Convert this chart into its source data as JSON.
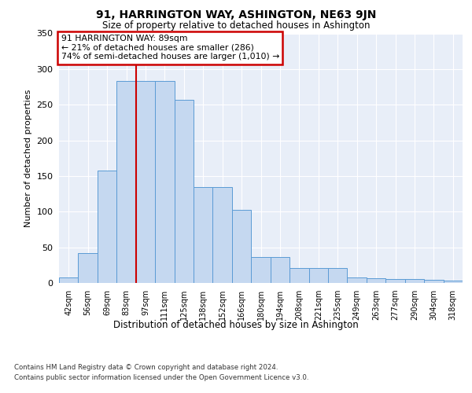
{
  "title": "91, HARRINGTON WAY, ASHINGTON, NE63 9JN",
  "subtitle": "Size of property relative to detached houses in Ashington",
  "xlabel": "Distribution of detached houses by size in Ashington",
  "ylabel": "Number of detached properties",
  "categories": [
    "42sqm",
    "56sqm",
    "69sqm",
    "83sqm",
    "97sqm",
    "111sqm",
    "125sqm",
    "138sqm",
    "152sqm",
    "166sqm",
    "180sqm",
    "194sqm",
    "208sqm",
    "221sqm",
    "235sqm",
    "249sqm",
    "263sqm",
    "277sqm",
    "290sqm",
    "304sqm",
    "318sqm"
  ],
  "values": [
    8,
    42,
    158,
    283,
    283,
    283,
    257,
    134,
    134,
    103,
    36,
    36,
    21,
    21,
    21,
    8,
    7,
    6,
    5,
    4,
    3
  ],
  "bar_color": "#c5d8f0",
  "bar_edge_color": "#5b9bd5",
  "vline_color": "#cc0000",
  "vline_x": 3.5,
  "annotation_text": "91 HARRINGTON WAY: 89sqm\n← 21% of detached houses are smaller (286)\n74% of semi-detached houses are larger (1,010) →",
  "annotation_box_color": "#ffffff",
  "annotation_box_edge_color": "#cc0000",
  "ylim": [
    0,
    350
  ],
  "yticks": [
    0,
    50,
    100,
    150,
    200,
    250,
    300,
    350
  ],
  "background_color": "#e8eef8",
  "grid_color": "#ffffff",
  "footer_line1": "Contains HM Land Registry data © Crown copyright and database right 2024.",
  "footer_line2": "Contains public sector information licensed under the Open Government Licence v3.0."
}
